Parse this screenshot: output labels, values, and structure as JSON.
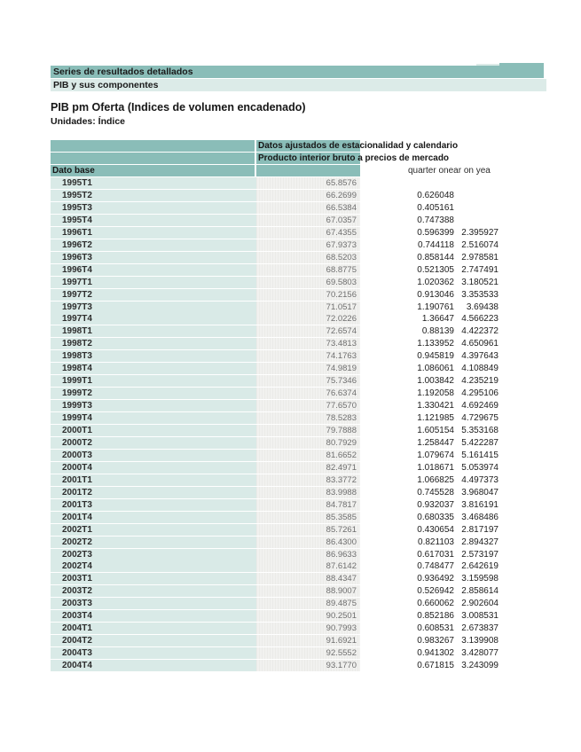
{
  "colors": {
    "teal": "#8abdb8",
    "light_teal": "#dcebe8",
    "row_label_bg": "#d9eae7",
    "value_cell_bg": "#f1f1ef"
  },
  "bands": {
    "band1": "Series de resultados detallados",
    "band2": "PIB y sus componentes"
  },
  "titles": {
    "title": "PIB pm Oferta (Indices de volumen encadenado)",
    "subtitle": "Unidades: Índice"
  },
  "table": {
    "header_line1": "Datos ajustados de estacionalidad y calendario",
    "header_line2": "Producto interior bruto a precios de mercado",
    "corner_label": "Dato base",
    "clipped_col_c": "quarter on",
    "clipped_col_d": "ear on yea",
    "rows": [
      {
        "q": "1995T1",
        "i": "65.8576",
        "c": "",
        "y": ""
      },
      {
        "q": "1995T2",
        "i": "66.2699",
        "c": "0.626048",
        "y": ""
      },
      {
        "q": "1995T3",
        "i": "66.5384",
        "c": "0.405161",
        "y": ""
      },
      {
        "q": "1995T4",
        "i": "67.0357",
        "c": "0.747388",
        "y": ""
      },
      {
        "q": "1996T1",
        "i": "67.4355",
        "c": "0.596399",
        "y": "2.395927"
      },
      {
        "q": "1996T2",
        "i": "67.9373",
        "c": "0.744118",
        "y": "2.516074"
      },
      {
        "q": "1996T3",
        "i": "68.5203",
        "c": "0.858144",
        "y": "2.978581"
      },
      {
        "q": "1996T4",
        "i": "68.8775",
        "c": "0.521305",
        "y": "2.747491"
      },
      {
        "q": "1997T1",
        "i": "69.5803",
        "c": "1.020362",
        "y": "3.180521"
      },
      {
        "q": "1997T2",
        "i": "70.2156",
        "c": "0.913046",
        "y": "3.353533"
      },
      {
        "q": "1997T3",
        "i": "71.0517",
        "c": "1.190761",
        "y": "3.69438"
      },
      {
        "q": "1997T4",
        "i": "72.0226",
        "c": "1.36647",
        "y": "4.566223"
      },
      {
        "q": "1998T1",
        "i": "72.6574",
        "c": "0.88139",
        "y": "4.422372"
      },
      {
        "q": "1998T2",
        "i": "73.4813",
        "c": "1.133952",
        "y": "4.650961"
      },
      {
        "q": "1998T3",
        "i": "74.1763",
        "c": "0.945819",
        "y": "4.397643"
      },
      {
        "q": "1998T4",
        "i": "74.9819",
        "c": "1.086061",
        "y": "4.108849"
      },
      {
        "q": "1999T1",
        "i": "75.7346",
        "c": "1.003842",
        "y": "4.235219"
      },
      {
        "q": "1999T2",
        "i": "76.6374",
        "c": "1.192058",
        "y": "4.295106"
      },
      {
        "q": "1999T3",
        "i": "77.6570",
        "c": "1.330421",
        "y": "4.692469"
      },
      {
        "q": "1999T4",
        "i": "78.5283",
        "c": "1.121985",
        "y": "4.729675"
      },
      {
        "q": "2000T1",
        "i": "79.7888",
        "c": "1.605154",
        "y": "5.353168"
      },
      {
        "q": "2000T2",
        "i": "80.7929",
        "c": "1.258447",
        "y": "5.422287"
      },
      {
        "q": "2000T3",
        "i": "81.6652",
        "c": "1.079674",
        "y": "5.161415"
      },
      {
        "q": "2000T4",
        "i": "82.4971",
        "c": "1.018671",
        "y": "5.053974"
      },
      {
        "q": "2001T1",
        "i": "83.3772",
        "c": "1.066825",
        "y": "4.497373"
      },
      {
        "q": "2001T2",
        "i": "83.9988",
        "c": "0.745528",
        "y": "3.968047"
      },
      {
        "q": "2001T3",
        "i": "84.7817",
        "c": "0.932037",
        "y": "3.816191"
      },
      {
        "q": "2001T4",
        "i": "85.3585",
        "c": "0.680335",
        "y": "3.468486"
      },
      {
        "q": "2002T1",
        "i": "85.7261",
        "c": "0.430654",
        "y": "2.817197"
      },
      {
        "q": "2002T2",
        "i": "86.4300",
        "c": "0.821103",
        "y": "2.894327"
      },
      {
        "q": "2002T3",
        "i": "86.9633",
        "c": "0.617031",
        "y": "2.573197"
      },
      {
        "q": "2002T4",
        "i": "87.6142",
        "c": "0.748477",
        "y": "2.642619"
      },
      {
        "q": "2003T1",
        "i": "88.4347",
        "c": "0.936492",
        "y": "3.159598"
      },
      {
        "q": "2003T2",
        "i": "88.9007",
        "c": "0.526942",
        "y": "2.858614"
      },
      {
        "q": "2003T3",
        "i": "89.4875",
        "c": "0.660062",
        "y": "2.902604"
      },
      {
        "q": "2003T4",
        "i": "90.2501",
        "c": "0.852186",
        "y": "3.008531"
      },
      {
        "q": "2004T1",
        "i": "90.7993",
        "c": "0.608531",
        "y": "2.673837"
      },
      {
        "q": "2004T2",
        "i": "91.6921",
        "c": "0.983267",
        "y": "3.139908"
      },
      {
        "q": "2004T3",
        "i": "92.5552",
        "c": "0.941302",
        "y": "3.428077"
      },
      {
        "q": "2004T4",
        "i": "93.1770",
        "c": "0.671815",
        "y": "3.243099"
      }
    ]
  }
}
